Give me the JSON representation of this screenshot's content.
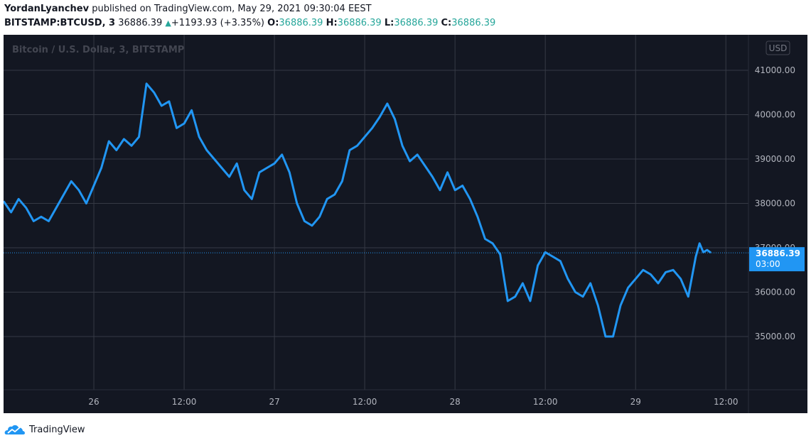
{
  "header": {
    "author": "YordanLyanchev",
    "published_text": "published on TradingView.com, May 29, 2021 09:30:04 EEST"
  },
  "ticker": {
    "symbol": "BITSTAMP:BTCUSD, 3",
    "last": "36886.39",
    "change": "+1193.93 (+3.35%)",
    "labels": {
      "open": "O:",
      "high": "H:",
      "low": "L:",
      "close": "C:"
    },
    "open": "36886.39",
    "high": "36886.39",
    "low": "36886.39",
    "close": "36886.39"
  },
  "colors": {
    "background": "#131722",
    "grid": "#363a45",
    "line": "#2196f3",
    "axis_text": "#b2b5be",
    "up": "#26a69a"
  },
  "chart_data": {
    "type": "line",
    "watermark": "Bitcoin / U.S. Dollar, 3, BITSTAMP",
    "currency": "USD",
    "ylim": [
      33800,
      41800
    ],
    "yticks": [
      35000,
      36000,
      37000,
      38000,
      39000,
      40000,
      41000
    ],
    "ytick_labels": [
      "35000.00",
      "36000.00",
      "37000.00",
      "38000.00",
      "39000.00",
      "40000.00",
      "41000.00"
    ],
    "xlim": [
      -12,
      87
    ],
    "xticks": [
      0,
      12,
      24,
      36,
      48,
      60,
      72,
      84
    ],
    "xtick_labels": [
      "26",
      "12:00",
      "27",
      "12:00",
      "28",
      "12:00",
      "29",
      "12:00"
    ],
    "x_unit": "hours from May 26 00:00",
    "grid": true,
    "last_value_label": "36886.39",
    "last_value_countdown": "03:00",
    "series": [
      {
        "x": [
          -12,
          -11,
          -10,
          -9,
          -8,
          -7,
          -6,
          -5,
          -4,
          -3,
          -2,
          -1,
          0,
          1,
          2,
          3,
          4,
          5,
          6,
          7,
          8,
          9,
          10,
          11,
          12,
          13,
          14,
          15,
          16,
          17,
          18,
          19,
          20,
          21,
          22,
          23,
          24,
          25,
          26,
          27,
          28,
          29,
          30,
          31,
          32,
          33,
          34,
          35,
          36,
          37,
          38,
          39,
          40,
          41,
          42,
          43,
          44,
          45,
          46,
          47,
          48,
          49,
          50,
          51,
          52,
          53,
          54,
          55,
          56,
          57,
          58,
          59,
          60,
          61,
          62,
          63,
          64,
          65,
          66,
          67,
          68,
          69,
          70,
          71,
          72,
          73,
          74,
          75,
          76,
          77,
          78,
          79,
          80,
          80.5,
          81,
          81.5,
          82
        ],
        "y": [
          38050,
          37800,
          38100,
          37900,
          37600,
          37700,
          37600,
          37900,
          38200,
          38500,
          38300,
          38000,
          38400,
          38800,
          39400,
          39200,
          39450,
          39300,
          39500,
          40700,
          40500,
          40200,
          40300,
          39700,
          39800,
          40100,
          39500,
          39200,
          39000,
          38800,
          38600,
          38900,
          38300,
          38100,
          38700,
          38800,
          38900,
          39100,
          38700,
          38000,
          37600,
          37500,
          37700,
          38100,
          38200,
          38500,
          39200,
          39300,
          39500,
          39700,
          39950,
          40250,
          39900,
          39300,
          38950,
          39100,
          38850,
          38600,
          38300,
          38700,
          38300,
          38400,
          38100,
          37700,
          37200,
          37100,
          36850,
          35800,
          35900,
          36200,
          35800,
          36600,
          36900,
          36800,
          36700,
          36300,
          36000,
          35900,
          36200,
          35700,
          35000,
          35000,
          35700,
          36100,
          36300,
          36500,
          36400,
          36200,
          36450,
          36500,
          36300,
          35900,
          36800,
          37100,
          36900,
          36950,
          36886
        ]
      }
    ]
  }
}
